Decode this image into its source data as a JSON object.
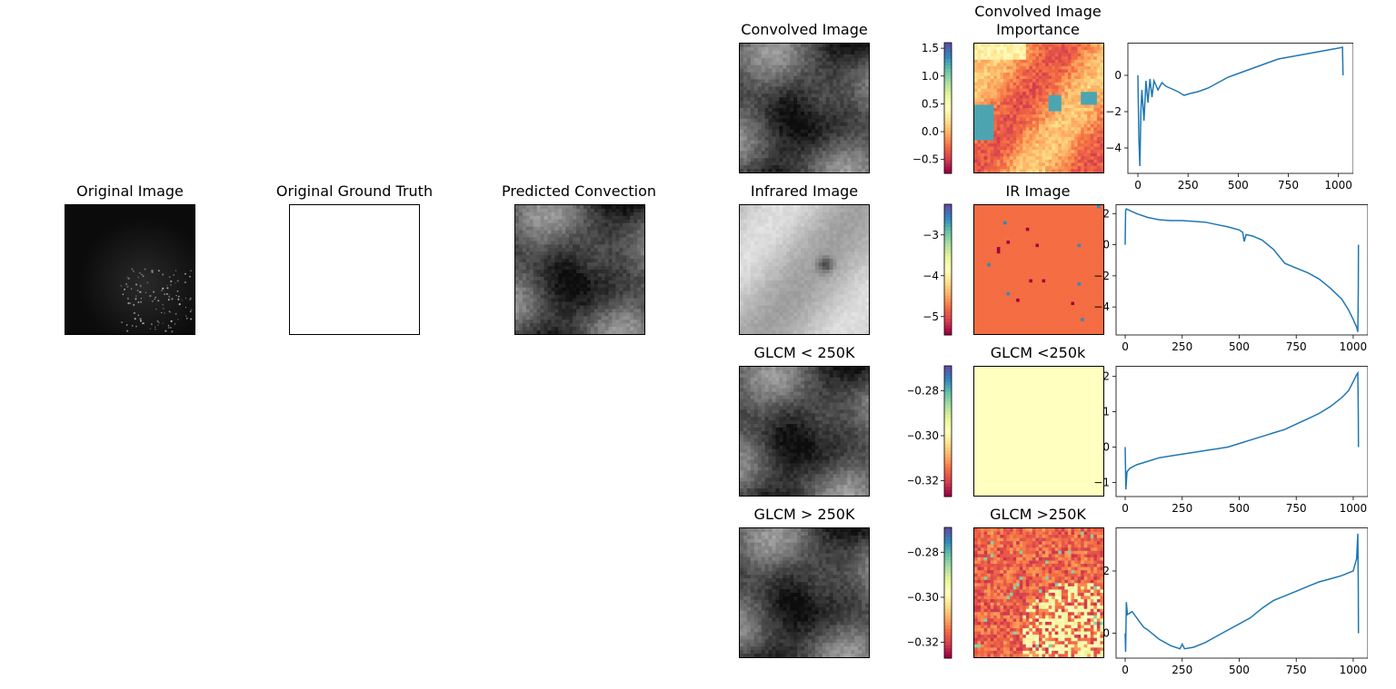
{
  "panels": {
    "original_image": {
      "title": "Original Image"
    },
    "original_ground_truth": {
      "title": "Original Ground Truth"
    },
    "predicted_convection": {
      "title": "Predicted Convection"
    }
  },
  "rows": [
    {
      "image_title": "Convolved Image",
      "importance_title_lines": [
        "Convolved Image",
        "Importance"
      ],
      "colorbar_ticks": [
        "1.5",
        "1.0",
        "0.5",
        "0.0",
        "−0.5"
      ],
      "colorbar_tick_values": [
        1.5,
        1.0,
        0.5,
        0.0,
        -0.5
      ],
      "colorbar_range": [
        -0.75,
        1.6
      ]
    },
    {
      "image_title": "Infrared Image",
      "importance_title_lines": [
        "IR Image"
      ],
      "colorbar_ticks": [
        "−3",
        "−4",
        "−5"
      ],
      "colorbar_tick_values": [
        -3,
        -4,
        -5
      ],
      "colorbar_range": [
        -5.45,
        -2.25
      ]
    },
    {
      "image_title": "GLCM < 250K",
      "importance_title_lines": [
        "GLCM <250k"
      ],
      "colorbar_ticks": [
        "−0.28",
        "−0.30",
        "−0.32"
      ],
      "colorbar_tick_values": [
        -0.28,
        -0.3,
        -0.32
      ],
      "colorbar_range": [
        -0.327,
        -0.269
      ]
    },
    {
      "image_title": "GLCM > 250K",
      "importance_title_lines": [
        "GLCM >250K"
      ],
      "colorbar_ticks": [
        "−0.28",
        "−0.30",
        "−0.32"
      ],
      "colorbar_tick_values": [
        -0.28,
        -0.3,
        -0.32
      ],
      "colorbar_range": [
        -0.327,
        -0.269
      ]
    }
  ],
  "chart_data": [
    {
      "type": "line",
      "series_color": "#1f77b4",
      "xlim": [
        -50,
        1074
      ],
      "ylim": [
        -5.4,
        1.8
      ],
      "xticks": [
        0,
        250,
        500,
        750,
        1000
      ],
      "xtick_labels": [
        "0",
        "250",
        "500",
        "750",
        "1000"
      ],
      "yticks": [
        0,
        -2,
        -4
      ],
      "ytick_labels": [
        "0",
        "−2",
        "−4"
      ],
      "x": [
        0,
        5,
        10,
        15,
        20,
        30,
        40,
        50,
        60,
        70,
        80,
        100,
        120,
        140,
        160,
        180,
        200,
        230,
        260,
        300,
        350,
        400,
        450,
        500,
        550,
        600,
        650,
        700,
        750,
        800,
        850,
        900,
        950,
        1000,
        1020,
        1022,
        1023
      ],
      "y": [
        0,
        -3.5,
        -5.0,
        -2.0,
        -0.8,
        -2.5,
        -0.3,
        -1.5,
        -0.2,
        -1.2,
        -0.3,
        -0.8,
        -0.4,
        -0.6,
        -0.7,
        -0.8,
        -0.9,
        -1.1,
        -1.0,
        -0.9,
        -0.7,
        -0.4,
        -0.1,
        0.1,
        0.3,
        0.5,
        0.7,
        0.9,
        1.0,
        1.1,
        1.2,
        1.3,
        1.4,
        1.5,
        1.55,
        0.6,
        0.0
      ]
    },
    {
      "type": "line",
      "series_color": "#1f77b4",
      "xlim": [
        -40,
        1064
      ],
      "ylim": [
        -5.8,
        2.6
      ],
      "xticks": [
        0,
        250,
        500,
        750,
        1000
      ],
      "xtick_labels": [
        "0",
        "250",
        "500",
        "750",
        "1000"
      ],
      "yticks": [
        2,
        0,
        -2,
        -4
      ],
      "ytick_labels": [
        "2",
        "0",
        "−2",
        "−4"
      ],
      "x": [
        0,
        2,
        5,
        20,
        50,
        100,
        150,
        200,
        250,
        300,
        350,
        400,
        450,
        500,
        515,
        522,
        530,
        560,
        600,
        650,
        700,
        750,
        800,
        850,
        900,
        950,
        980,
        1000,
        1015,
        1020,
        1022,
        1023
      ],
      "y": [
        0,
        2.2,
        2.3,
        2.2,
        2.0,
        1.75,
        1.6,
        1.55,
        1.55,
        1.5,
        1.45,
        1.3,
        1.15,
        0.95,
        0.8,
        0.2,
        0.65,
        0.55,
        0.3,
        -0.3,
        -1.2,
        -1.5,
        -1.8,
        -2.2,
        -2.8,
        -3.5,
        -4.2,
        -4.8,
        -5.3,
        -5.6,
        -3.0,
        0.0
      ]
    },
    {
      "type": "line",
      "series_color": "#1f77b4",
      "xlim": [
        -40,
        1064
      ],
      "ylim": [
        -1.4,
        2.3
      ],
      "xticks": [
        0,
        250,
        500,
        750,
        1000
      ],
      "xtick_labels": [
        "0",
        "250",
        "500",
        "750",
        "1000"
      ],
      "yticks": [
        2,
        1,
        0,
        -1
      ],
      "ytick_labels": [
        "2",
        "1",
        "0",
        "−1"
      ],
      "x": [
        0,
        3,
        8,
        20,
        50,
        100,
        150,
        200,
        250,
        300,
        350,
        400,
        450,
        500,
        550,
        600,
        650,
        700,
        750,
        800,
        850,
        900,
        950,
        980,
        1000,
        1015,
        1020,
        1022,
        1023
      ],
      "y": [
        0,
        -1.2,
        -0.7,
        -0.6,
        -0.5,
        -0.4,
        -0.3,
        -0.25,
        -0.2,
        -0.15,
        -0.1,
        -0.05,
        0.0,
        0.1,
        0.2,
        0.3,
        0.4,
        0.5,
        0.65,
        0.8,
        0.95,
        1.15,
        1.4,
        1.6,
        1.85,
        2.05,
        2.1,
        1.0,
        0.0
      ]
    },
    {
      "type": "line",
      "series_color": "#1f77b4",
      "xlim": [
        -40,
        1064
      ],
      "ylim": [
        -0.8,
        3.4
      ],
      "xticks": [
        0,
        250,
        500,
        750,
        1000
      ],
      "xtick_labels": [
        "0",
        "250",
        "500",
        "750",
        "1000"
      ],
      "yticks": [
        2,
        0
      ],
      "ytick_labels": [
        "2",
        "0"
      ],
      "x": [
        0,
        2,
        5,
        10,
        30,
        50,
        80,
        100,
        150,
        200,
        240,
        250,
        260,
        300,
        350,
        400,
        450,
        500,
        550,
        600,
        650,
        700,
        750,
        800,
        850,
        900,
        950,
        1000,
        1015,
        1020,
        1022,
        1023
      ],
      "y": [
        0,
        -0.6,
        1.0,
        0.6,
        0.7,
        0.5,
        0.2,
        0.1,
        -0.2,
        -0.4,
        -0.5,
        -0.35,
        -0.5,
        -0.45,
        -0.3,
        -0.1,
        0.1,
        0.3,
        0.5,
        0.8,
        1.05,
        1.2,
        1.35,
        1.5,
        1.65,
        1.75,
        1.85,
        2.0,
        2.4,
        3.2,
        1.5,
        0.0
      ]
    }
  ]
}
